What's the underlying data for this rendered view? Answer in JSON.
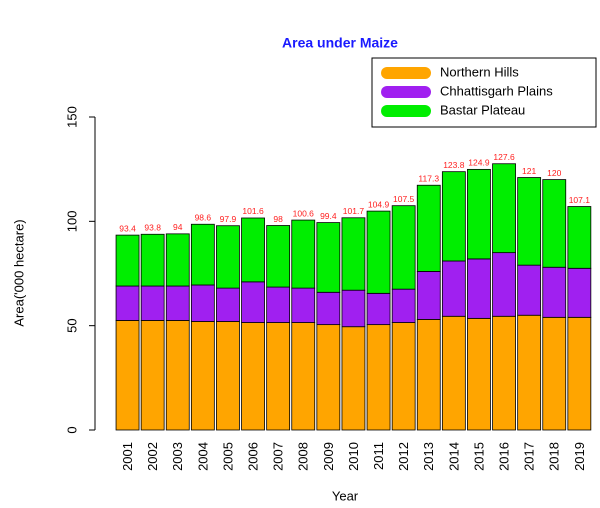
{
  "chart_data": {
    "type": "stacked_bar",
    "title": "Area under Maize",
    "x_label": "Year",
    "y_label": "Area('000 hectare)",
    "categories": [
      "2001",
      "2002",
      "2003",
      "2004",
      "2005",
      "2006",
      "2007",
      "2008",
      "2009",
      "2010",
      "2011",
      "2012",
      "2013",
      "2014",
      "2015",
      "2016",
      "2017",
      "2018",
      "2019"
    ],
    "series": [
      {
        "name": "Northern Hills",
        "color": "#ffa500",
        "values": [
          52.5,
          52.5,
          52.5,
          52,
          52,
          51.5,
          51.5,
          51.5,
          50.5,
          49.5,
          50.5,
          51.5,
          53,
          54.5,
          53.5,
          54.5,
          55,
          54,
          54
        ]
      },
      {
        "name": "Chhattisgarh Plains",
        "color": "#a020f0",
        "values": [
          16.5,
          16.5,
          16.5,
          17.5,
          16,
          19.5,
          17,
          16.5,
          15.5,
          17.5,
          15,
          16,
          23,
          26.5,
          28.5,
          30.5,
          24,
          24,
          23.5
        ]
      },
      {
        "name": "Bastar Plateau",
        "color": "#00ee00",
        "values": [
          24.4,
          24.8,
          25,
          29.1,
          29.9,
          30.6,
          29.5,
          32.6,
          33.4,
          34.7,
          39.4,
          40,
          41.3,
          42.8,
          42.9,
          42.6,
          42,
          42,
          29.6
        ]
      }
    ],
    "totals": [
      93.4,
      93.8,
      94,
      98.6,
      97.9,
      101.6,
      98,
      100.6,
      99.4,
      101.7,
      104.9,
      107.5,
      117.3,
      123.8,
      124.9,
      127.6,
      121,
      120,
      107.1
    ],
    "ylim": [
      0,
      150
    ],
    "yticks": [
      0,
      50,
      100,
      150
    ],
    "legend": "top-right"
  }
}
